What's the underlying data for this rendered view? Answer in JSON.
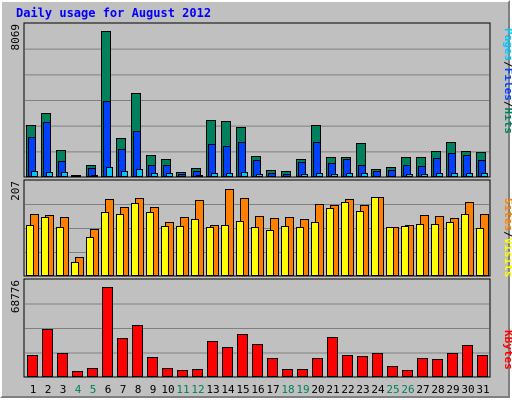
{
  "title": "Daily usage for August 2012",
  "colors": {
    "title": "#0000ff",
    "hits": "#00805c",
    "files": "#0040ff",
    "pages": "#00c8ff",
    "visits": "#ffff00",
    "sites": "#ff8000",
    "kbytes": "#ff0000",
    "weekday": "#000000",
    "weekend": "#00805c",
    "separator": "#000000",
    "grid": "#808080",
    "plot_bg": "#c0c0c0"
  },
  "legend_top": {
    "pages": "Pages",
    "files": "Files",
    "hits": "Hits",
    "sep": "/"
  },
  "legend_mid": {
    "sites": "Sites",
    "visits": "Visits",
    "sep": "/"
  },
  "legend_bot": {
    "kbytes": "KBytes"
  },
  "chart_data": [
    {
      "type": "bar",
      "name": "hits-files-pages",
      "ymax_label": "8069",
      "ylim": [
        0,
        8069
      ],
      "categories": [
        "1",
        "2",
        "3",
        "4",
        "5",
        "6",
        "7",
        "8",
        "9",
        "10",
        "11",
        "12",
        "13",
        "14",
        "15",
        "16",
        "17",
        "18",
        "19",
        "20",
        "21",
        "22",
        "23",
        "24",
        "25",
        "26",
        "27",
        "28",
        "29",
        "30",
        "31"
      ],
      "weekend_days": [
        "4",
        "5",
        "11",
        "12",
        "18",
        "19",
        "25",
        "26"
      ],
      "series": [
        {
          "name": "Hits",
          "values": [
            2870,
            3560,
            1490,
            110,
            650,
            8069,
            2130,
            4640,
            1240,
            1000,
            280,
            500,
            3140,
            3120,
            2790,
            1180,
            390,
            320,
            1000,
            2870,
            1130,
            1130,
            1890,
            440,
            560,
            1130,
            1130,
            1430,
            1950,
            1430,
            1390
          ]
        },
        {
          "name": "Files",
          "values": [
            2200,
            3020,
            910,
            40,
            480,
            4220,
            1570,
            2550,
            690,
            650,
            150,
            330,
            1850,
            1710,
            1950,
            920,
            220,
            170,
            820,
            1940,
            790,
            1020,
            680,
            310,
            390,
            680,
            590,
            1050,
            1330,
            1190,
            940
          ]
        },
        {
          "name": "Pages",
          "values": [
            330,
            290,
            250,
            20,
            120,
            540,
            310,
            430,
            210,
            200,
            40,
            110,
            220,
            230,
            250,
            180,
            60,
            40,
            190,
            220,
            170,
            210,
            200,
            60,
            50,
            190,
            160,
            220,
            220,
            210,
            200
          ]
        }
      ]
    },
    {
      "type": "bar",
      "name": "visits-sites",
      "ymax_label": "207",
      "ylim": [
        0,
        207
      ],
      "categories": [
        "1",
        "2",
        "3",
        "4",
        "5",
        "6",
        "7",
        "8",
        "9",
        "10",
        "11",
        "12",
        "13",
        "14",
        "15",
        "16",
        "17",
        "18",
        "19",
        "20",
        "21",
        "22",
        "23",
        "24",
        "25",
        "26",
        "27",
        "28",
        "29",
        "30",
        "31"
      ],
      "series": [
        {
          "name": "Visits",
          "values": [
            120,
            139,
            116,
            34,
            91,
            150,
            145,
            172,
            150,
            117,
            117,
            135,
            116,
            121,
            130,
            116,
            108,
            117,
            116,
            127,
            159,
            174,
            153,
            187,
            116,
            118,
            123,
            123,
            128,
            146,
            114
          ]
        },
        {
          "name": "Sites",
          "values": [
            145,
            143,
            138,
            45,
            110,
            180,
            163,
            183,
            163,
            127,
            138,
            178,
            121,
            205,
            183,
            140,
            136,
            139,
            133,
            170,
            168,
            181,
            167,
            187,
            115,
            120,
            143,
            140,
            136,
            173,
            147
          ]
        }
      ]
    },
    {
      "type": "bar",
      "name": "kbytes",
      "ymax_label": "68776",
      "ylim": [
        0,
        68776
      ],
      "categories": [
        "1",
        "2",
        "3",
        "4",
        "5",
        "6",
        "7",
        "8",
        "9",
        "10",
        "11",
        "12",
        "13",
        "14",
        "15",
        "16",
        "17",
        "18",
        "19",
        "20",
        "21",
        "22",
        "23",
        "24",
        "25",
        "26",
        "27",
        "28",
        "29",
        "30",
        "31"
      ],
      "series": [
        {
          "name": "KBytes",
          "values": [
            16850,
            37020,
            18200,
            4340,
            7180,
            68776,
            29540,
            39850,
            15500,
            6950,
            5510,
            5910,
            27460,
            23070,
            32840,
            25280,
            14320,
            6190,
            6350,
            14580,
            30930,
            16550,
            16170,
            18200,
            8270,
            5210,
            14830,
            13720,
            18390,
            24750,
            16940
          ]
        }
      ]
    }
  ]
}
